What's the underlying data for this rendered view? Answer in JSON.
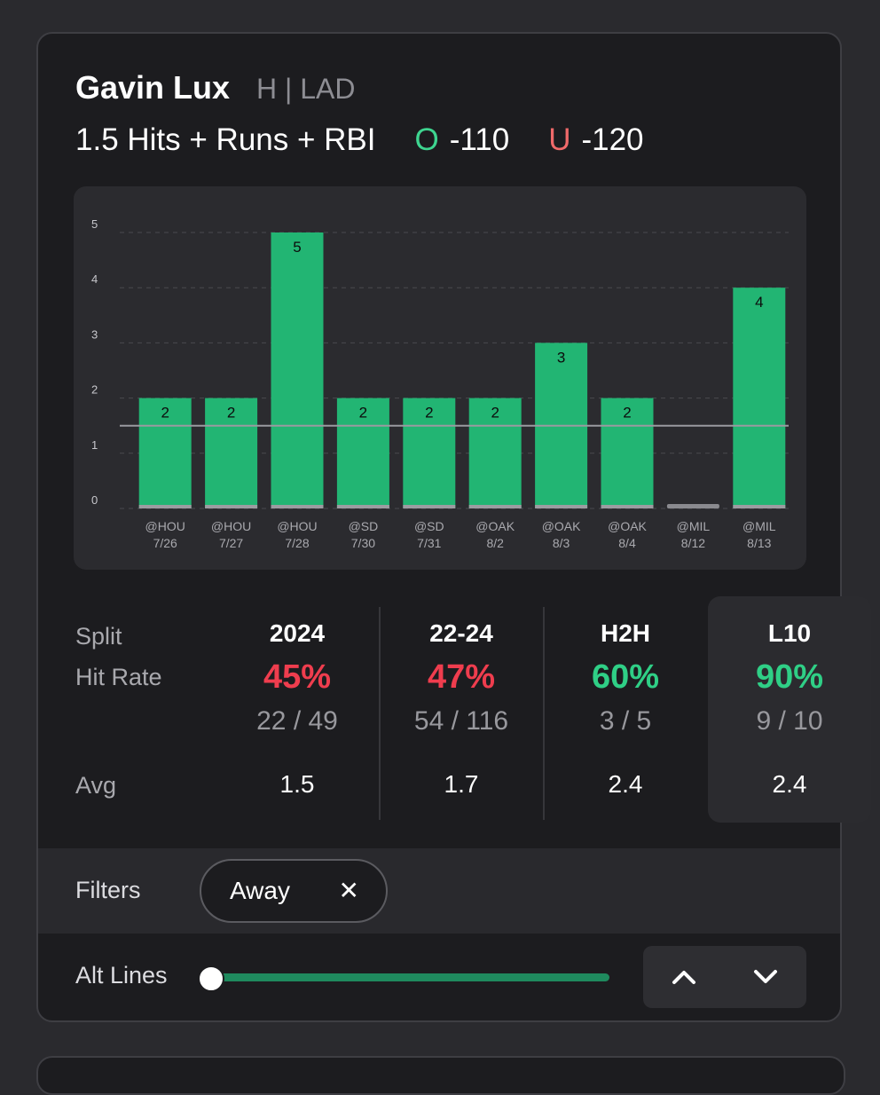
{
  "header": {
    "player_name": "Gavin Lux",
    "player_meta": "H | LAD",
    "prop": "1.5 Hits + Runs + RBI",
    "over": {
      "letter": "O",
      "odds": "-110",
      "color": "#3ed590"
    },
    "under": {
      "letter": "U",
      "odds": "-120",
      "color": "#f06a6a"
    }
  },
  "chart_data": {
    "type": "bar",
    "categories": [
      "@HOU 7/26",
      "@HOU 7/27",
      "@HOU 7/28",
      "@SD 7/30",
      "@SD 7/31",
      "@OAK 8/2",
      "@OAK 8/3",
      "@OAK 8/4",
      "@MIL 8/12",
      "@MIL 8/13"
    ],
    "opponents": [
      "@HOU",
      "@HOU",
      "@HOU",
      "@SD",
      "@SD",
      "@OAK",
      "@OAK",
      "@OAK",
      "@MIL",
      "@MIL"
    ],
    "dates": [
      "7/26",
      "7/27",
      "7/28",
      "7/30",
      "7/31",
      "8/2",
      "8/3",
      "8/4",
      "8/12",
      "8/13"
    ],
    "values": [
      2,
      2,
      5,
      2,
      2,
      2,
      3,
      2,
      0,
      4
    ],
    "data_labels": [
      "2",
      "2",
      "5",
      "2",
      "2",
      "2",
      "3",
      "2",
      "",
      "4"
    ],
    "ylim": [
      0,
      5
    ],
    "yticks": [
      "0",
      "1",
      "2",
      "3",
      "4",
      "5"
    ],
    "line_value": 1.5,
    "grid": true,
    "bar_color": "#22b573",
    "zero_bar_color": "#8a8a8f"
  },
  "splits": {
    "row_labels": {
      "split": "Split",
      "hit_rate": "Hit Rate",
      "avg": "Avg"
    },
    "columns": [
      {
        "head": "2024",
        "rate": "45%",
        "rate_color": "red",
        "frac": "22 / 49",
        "avg": "1.5"
      },
      {
        "head": "22-24",
        "rate": "47%",
        "rate_color": "red",
        "frac": "54 / 116",
        "avg": "1.7"
      },
      {
        "head": "H2H",
        "rate": "60%",
        "rate_color": "green",
        "frac": "3 / 5",
        "avg": "2.4"
      },
      {
        "head": "L10",
        "rate": "90%",
        "rate_color": "green",
        "frac": "9 / 10",
        "avg": "2.4",
        "active": true
      }
    ]
  },
  "filters": {
    "label": "Filters",
    "chip": "Away",
    "chip_close": "✕"
  },
  "alt_lines": {
    "label": "Alt Lines",
    "position": 0.0
  }
}
